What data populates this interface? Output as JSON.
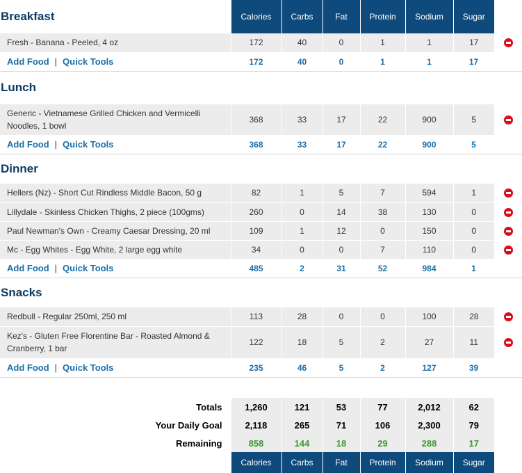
{
  "columns": [
    "Calories",
    "Carbs",
    "Fat",
    "Protein",
    "Sodium",
    "Sugar"
  ],
  "links": {
    "add_food": "Add Food",
    "separator": "|",
    "quick_tools": "Quick Tools"
  },
  "meals": [
    {
      "title": "Breakfast",
      "items": [
        {
          "name": "Fresh - Banana - Peeled, 4 oz",
          "values": [
            "172",
            "40",
            "0",
            "1",
            "1",
            "17"
          ]
        }
      ],
      "totals": [
        "172",
        "40",
        "0",
        "1",
        "1",
        "17"
      ]
    },
    {
      "title": "Lunch",
      "items": [
        {
          "name": "Generic - Vietnamese Grilled Chicken and Vermicelli Noodles, 1 bowl",
          "values": [
            "368",
            "33",
            "17",
            "22",
            "900",
            "5"
          ]
        }
      ],
      "totals": [
        "368",
        "33",
        "17",
        "22",
        "900",
        "5"
      ]
    },
    {
      "title": "Dinner",
      "items": [
        {
          "name": "Hellers (Nz) - Short Cut Rindless Middle Bacon, 50 g",
          "values": [
            "82",
            "1",
            "5",
            "7",
            "594",
            "1"
          ]
        },
        {
          "name": "Lillydale - Skinless Chicken Thighs, 2 piece (100gms)",
          "values": [
            "260",
            "0",
            "14",
            "38",
            "130",
            "0"
          ]
        },
        {
          "name": "Paul Newman's Own - Creamy Caesar Dressing, 20 ml",
          "values": [
            "109",
            "1",
            "12",
            "0",
            "150",
            "0"
          ]
        },
        {
          "name": "Mc - Egg Whites - Egg White, 2 large egg white",
          "values": [
            "34",
            "0",
            "0",
            "7",
            "110",
            "0"
          ]
        }
      ],
      "totals": [
        "485",
        "2",
        "31",
        "52",
        "984",
        "1"
      ]
    },
    {
      "title": "Snacks",
      "items": [
        {
          "name": "Redbull - Regular 250ml, 250 ml",
          "values": [
            "113",
            "28",
            "0",
            "0",
            "100",
            "28"
          ]
        },
        {
          "name": "Kez's - Gluten Free Florentine Bar - Roasted Almond & Cranberry, 1 bar",
          "values": [
            "122",
            "18",
            "5",
            "2",
            "27",
            "11"
          ]
        }
      ],
      "totals": [
        "235",
        "46",
        "5",
        "2",
        "127",
        "39"
      ]
    }
  ],
  "summary": {
    "totals": {
      "label": "Totals",
      "values": [
        "1,260",
        "121",
        "53",
        "77",
        "2,012",
        "62"
      ]
    },
    "goal": {
      "label": "Your Daily Goal",
      "values": [
        "2,118",
        "265",
        "71",
        "106",
        "2,300",
        "79"
      ]
    },
    "remaining": {
      "label": "Remaining",
      "values": [
        "858",
        "144",
        "18",
        "29",
        "288",
        "17"
      ]
    }
  },
  "colors": {
    "header_bg": "#0e4a7b",
    "link": "#1a6ea8",
    "remaining": "#3c9a2f",
    "delete": "#d80f1b"
  }
}
